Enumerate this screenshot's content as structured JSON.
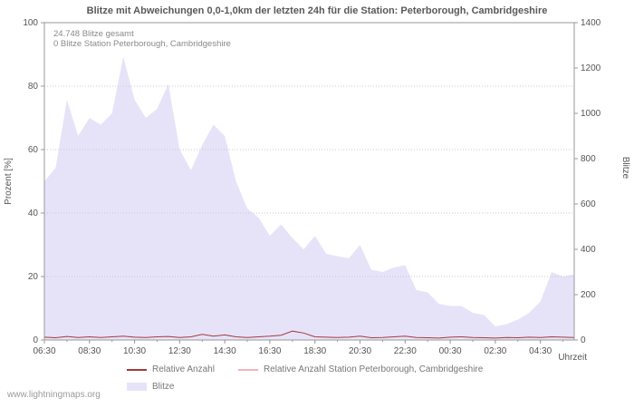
{
  "title": "Blitze mit Abweichungen 0,0-1,0km der letzten 24h für die Station: Peterborough, Cambridgeshire",
  "watermark": "www.lightningmaps.org",
  "annotations": {
    "total": "24.748 Blitze gesamt",
    "station": "0 Blitze Station Peterborough, Cambridgeshire"
  },
  "axes": {
    "left_label": "Prozent  [%]",
    "right_label": "Blitze",
    "x_label": "Uhrzeit",
    "left_ticks": [
      0,
      20,
      40,
      60,
      80,
      100
    ],
    "right_ticks": [
      0,
      200,
      400,
      600,
      800,
      1000,
      1200,
      1400
    ],
    "x_tick_labels": [
      "06:30",
      "08:30",
      "10:30",
      "12:30",
      "14:30",
      "16:30",
      "18:30",
      "20:30",
      "22:30",
      "00:30",
      "02:30",
      "04:30"
    ]
  },
  "legend": [
    {
      "label": "Relative Anzahl",
      "color": "#a23b3b",
      "type": "line"
    },
    {
      "label": "Relative Anzahl Station Peterborough, Cambridgeshire",
      "color": "#f0b3bb",
      "type": "line"
    },
    {
      "label": "Blitze",
      "color": "#e6e3f9",
      "type": "area"
    }
  ],
  "chart_data": {
    "type": "area",
    "title": "Blitze mit Abweichungen 0,0-1,0km der letzten 24h für die Station: Peterborough, Cambridgeshire",
    "xlabel": "Uhrzeit",
    "left_axis": {
      "label": "Prozent [%]",
      "range": [
        0,
        100
      ]
    },
    "right_axis": {
      "label": "Blitze",
      "range": [
        0,
        1400
      ]
    },
    "grid": true,
    "legend_position": "bottom",
    "categories": [
      "06:30",
      "07:00",
      "07:30",
      "08:00",
      "08:30",
      "09:00",
      "09:30",
      "10:00",
      "10:30",
      "11:00",
      "11:30",
      "12:00",
      "12:30",
      "13:00",
      "13:30",
      "14:00",
      "14:30",
      "15:00",
      "15:30",
      "16:00",
      "16:30",
      "17:00",
      "17:30",
      "18:00",
      "18:30",
      "19:00",
      "19:30",
      "20:00",
      "20:30",
      "21:00",
      "21:30",
      "22:00",
      "22:30",
      "23:00",
      "23:30",
      "00:00",
      "00:30",
      "01:00",
      "01:30",
      "02:00",
      "02:30",
      "03:00",
      "03:30",
      "04:00",
      "04:30",
      "05:00",
      "05:30",
      "06:00"
    ],
    "series": [
      {
        "name": "Blitze",
        "type": "area",
        "axis": "right",
        "color": "#e6e3f9",
        "values": [
          700,
          760,
          1060,
          900,
          980,
          950,
          1000,
          1250,
          1060,
          980,
          1020,
          1130,
          840,
          750,
          860,
          950,
          900,
          700,
          580,
          540,
          460,
          510,
          450,
          400,
          460,
          380,
          370,
          360,
          420,
          310,
          300,
          320,
          330,
          220,
          210,
          160,
          150,
          150,
          120,
          110,
          60,
          70,
          90,
          120,
          170,
          300,
          280,
          290
        ]
      },
      {
        "name": "Relative Anzahl",
        "type": "line",
        "axis": "left",
        "color": "#a23b3b",
        "values": [
          0.9,
          0.7,
          1.1,
          0.8,
          1.0,
          0.8,
          1.0,
          1.2,
          0.9,
          0.8,
          1.0,
          1.1,
          0.8,
          1.0,
          1.8,
          1.2,
          1.6,
          1.0,
          0.8,
          1.0,
          1.2,
          1.5,
          2.8,
          2.2,
          1.0,
          0.9,
          0.8,
          0.9,
          1.2,
          0.7,
          0.8,
          1.0,
          1.2,
          0.8,
          0.7,
          0.6,
          0.9,
          1.0,
          0.8,
          0.7,
          0.6,
          0.8,
          0.7,
          0.9,
          0.8,
          1.0,
          0.9,
          0.8
        ]
      },
      {
        "name": "Relative Anzahl Station Peterborough, Cambridgeshire",
        "type": "line",
        "axis": "left",
        "color": "#f0b3bb",
        "values": [
          0,
          0,
          0,
          0,
          0,
          0,
          0,
          0,
          0,
          0,
          0,
          0,
          0,
          0,
          0,
          0,
          0,
          0,
          0,
          0,
          0,
          0,
          0,
          0,
          0,
          0,
          0,
          0,
          0,
          0,
          0,
          0,
          0,
          0,
          0,
          0,
          0,
          0,
          0,
          0,
          0,
          0,
          0,
          0,
          0,
          0,
          0,
          0
        ]
      }
    ]
  }
}
